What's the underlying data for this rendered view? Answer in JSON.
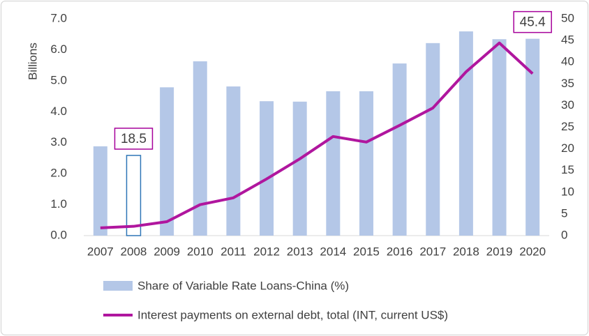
{
  "chart_data": {
    "type": "bar-line",
    "y_label": "Billions",
    "categories": [
      "2007",
      "2008",
      "2009",
      "2010",
      "2011",
      "2012",
      "2013",
      "2014",
      "2015",
      "2016",
      "2017",
      "2018",
      "2019",
      "2020"
    ],
    "ylim": [
      0,
      7
    ],
    "yticks": [
      {
        "value": 0,
        "label": "0.0"
      },
      {
        "value": 1,
        "label": "1.0"
      },
      {
        "value": 2,
        "label": "2.0"
      },
      {
        "value": 3,
        "label": "3.0"
      },
      {
        "value": 4,
        "label": "4.0"
      },
      {
        "value": 5,
        "label": "5.0"
      },
      {
        "value": 6,
        "label": "6.0"
      },
      {
        "value": 7,
        "label": "7.0"
      }
    ],
    "y2lim": [
      0,
      50
    ],
    "y2ticks": [
      0,
      5,
      10,
      15,
      20,
      25,
      30,
      35,
      40,
      45,
      50
    ],
    "legend": "bottom",
    "series": [
      {
        "name": "Share of Variable Rate Loans-China (%)",
        "type": "bar",
        "axis": "y2",
        "color": "#b4c7e7",
        "highlight": {
          "category": "2008",
          "fill": "#ffffff",
          "stroke": "#2e75b6"
        },
        "label_color": "#a6009a",
        "values": [
          20.6,
          18.5,
          34.2,
          40.2,
          34.4,
          31.0,
          30.9,
          33.3,
          33.3,
          39.7,
          44.4,
          47.1,
          45.3,
          45.4
        ],
        "value_labels": [
          null,
          "18.5",
          null,
          null,
          null,
          null,
          null,
          null,
          null,
          null,
          null,
          null,
          null,
          "45.4"
        ]
      },
      {
        "name": "Interest payments on external debt, total (INT, current US$)",
        "type": "line",
        "color": "#b0169e",
        "values": [
          0.25,
          0.3,
          0.45,
          1.0,
          1.22,
          1.83,
          2.48,
          3.2,
          3.02,
          3.56,
          4.12,
          5.29,
          6.22,
          5.23
        ]
      }
    ]
  }
}
